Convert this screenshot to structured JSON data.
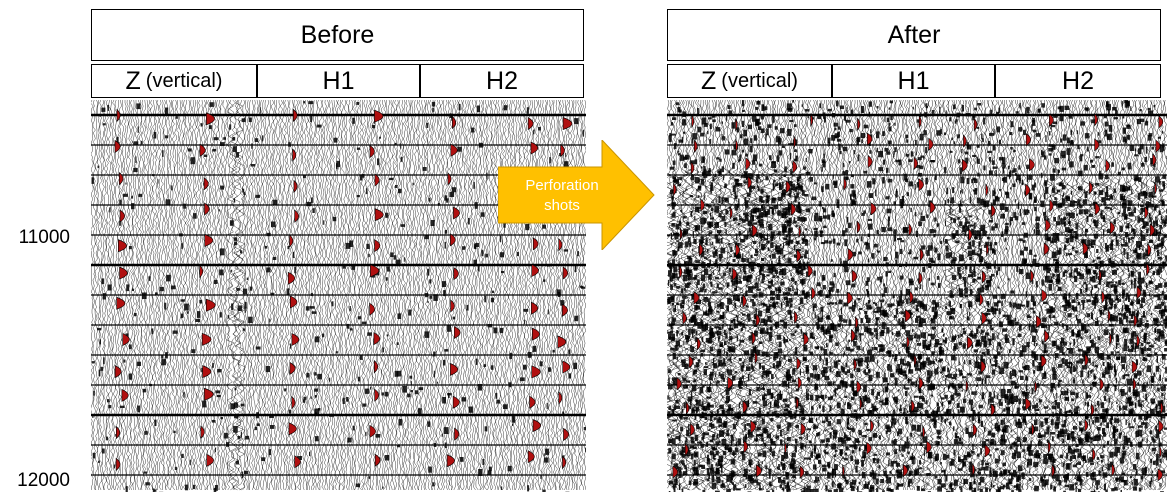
{
  "before": {
    "title": "Before",
    "components": [
      {
        "main": "Z",
        "sub": "(vertical)"
      },
      {
        "main": "H1",
        "sub": ""
      },
      {
        "main": "H2",
        "sub": ""
      }
    ]
  },
  "after": {
    "title": "After",
    "components": [
      {
        "main": "Z",
        "sub": "(vertical)"
      },
      {
        "main": "H1",
        "sub": ""
      },
      {
        "main": "H2",
        "sub": ""
      }
    ]
  },
  "arrow": {
    "line1": "Perforation",
    "line2": "shots"
  },
  "depth_labels": {
    "upper": "11000",
    "lower": "12000"
  },
  "colors": {
    "wiggle": "#000000",
    "fill_red": "#b01010",
    "arrow_fill": "#ffc000",
    "arrow_text": "#ffffff"
  }
}
